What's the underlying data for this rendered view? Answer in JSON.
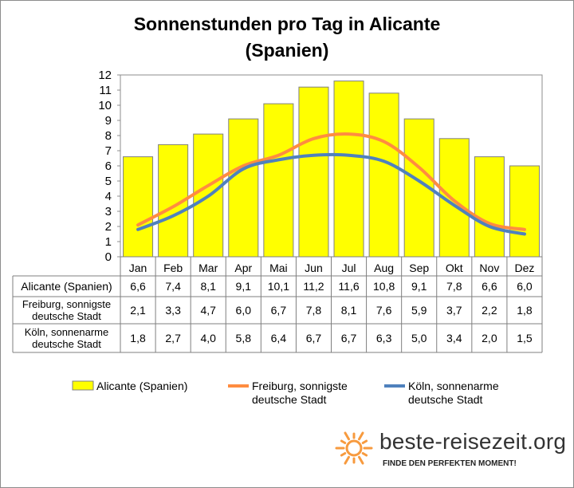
{
  "chart_data": {
    "type": "bar",
    "title": "Sonnenstunden pro Tag in Alicante (Spanien)",
    "categories": [
      "Jan",
      "Feb",
      "Mar",
      "Apr",
      "Mai",
      "Jun",
      "Jul",
      "Aug",
      "Sep",
      "Okt",
      "Nov",
      "Dez"
    ],
    "ylim": [
      0,
      12
    ],
    "yticks": [
      "0",
      "1",
      "2",
      "3",
      "4",
      "5",
      "6",
      "7",
      "8",
      "9",
      "10",
      "11",
      "12"
    ],
    "grid": false,
    "legend_position": "bottom",
    "series": [
      {
        "name": "Alicante (Spanien)",
        "table_label": [
          "Alicante (Spanien)"
        ],
        "type": "bar",
        "color": "#ffff00",
        "values": [
          6.6,
          7.4,
          8.1,
          9.1,
          10.1,
          11.2,
          11.6,
          10.8,
          9.1,
          7.8,
          6.6,
          6.0
        ],
        "labels": [
          "6,6",
          "7,4",
          "8,1",
          "9,1",
          "10,1",
          "11,2",
          "11,6",
          "10,8",
          "9,1",
          "7,8",
          "6,6",
          "6,0"
        ]
      },
      {
        "name": "Freiburg, sonnigste deutsche Stadt",
        "table_label": [
          "Freiburg, sonnigste",
          "deutsche Stadt"
        ],
        "legend_label": [
          "Freiburg, sonnigste",
          "deutsche Stadt"
        ],
        "type": "line",
        "color": "#ff8c40",
        "values": [
          2.1,
          3.3,
          4.7,
          6.0,
          6.7,
          7.8,
          8.1,
          7.6,
          5.9,
          3.7,
          2.2,
          1.8
        ],
        "labels": [
          "2,1",
          "3,3",
          "4,7",
          "6,0",
          "6,7",
          "7,8",
          "8,1",
          "7,6",
          "5,9",
          "3,7",
          "2,2",
          "1,8"
        ]
      },
      {
        "name": "Köln, sonnenarme deutsche Stadt",
        "table_label": [
          "Köln, sonnenarme",
          "deutsche Stadt"
        ],
        "legend_label": [
          "Köln, sonnenarme",
          "deutsche Stadt"
        ],
        "type": "line",
        "color": "#4f81bd",
        "values": [
          1.8,
          2.7,
          4.0,
          5.8,
          6.4,
          6.7,
          6.7,
          6.3,
          5.0,
          3.4,
          2.0,
          1.5
        ],
        "labels": [
          "1,8",
          "2,7",
          "4,0",
          "5,8",
          "6,4",
          "6,7",
          "6,7",
          "6,3",
          "5,0",
          "3,4",
          "2,0",
          "1,5"
        ]
      }
    ]
  },
  "logo": {
    "text": "beste-reisezeit.org",
    "tagline": "FINDE DEN PERFEKTEN MOMENT!",
    "icon": "sun-icon",
    "sun_color": "#f79a3e"
  }
}
